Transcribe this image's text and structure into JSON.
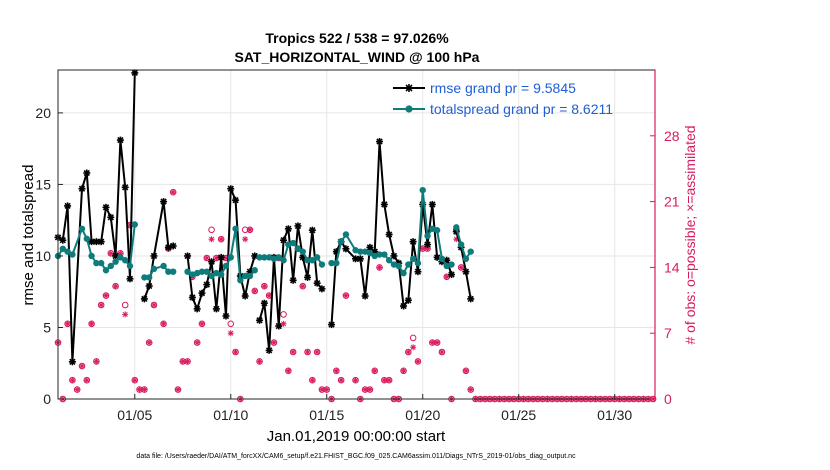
{
  "chart_data": {
    "type": "line",
    "title": "Tropics 522 / 538 = 97.026%",
    "subtitle": "SAT_HORIZONTAL_WIND @ 100 hPa",
    "xlabel": "Jan.01,2019 00:00:00 start",
    "ylabel": "rmse and totalspread",
    "y2label": "# of obs: o=possible; ×=assimilated",
    "xlim": [
      1,
      32.1
    ],
    "ylim": [
      0,
      23
    ],
    "y2lim": [
      0,
      35
    ],
    "x_ticks": [
      5,
      10,
      15,
      20,
      25,
      30
    ],
    "x_tick_labels": [
      "01/05",
      "01/10",
      "01/15",
      "01/20",
      "01/25",
      "01/30"
    ],
    "y_ticks": [
      0,
      5,
      10,
      15,
      20
    ],
    "y_tick_labels": [
      "0",
      "5",
      "10",
      "15",
      "20"
    ],
    "y2_ticks": [
      0,
      7,
      14,
      21,
      28
    ],
    "y2_tick_labels": [
      "0",
      "7",
      "14",
      "21",
      "28"
    ],
    "footer": "data file: /Users/raeder/DAI/ATM_forcXX/CAM6_setup/f.e21.FHIST_BGC.f09_025.CAM6assim.011/Diags_NTrS_2019-01/obs_diag_output.nc",
    "series": [
      {
        "name": "rmse grand pr = 9.5845",
        "color": "#000000",
        "segments": [
          [
            [
              1.0,
              11.3
            ],
            [
              1.25,
              11.1
            ],
            [
              1.5,
              13.5
            ],
            [
              1.75,
              2.6
            ],
            [
              2.25,
              14.7
            ],
            [
              2.5,
              15.8
            ],
            [
              2.75,
              11.0
            ],
            [
              3.0,
              11.0
            ],
            [
              3.25,
              11.0
            ],
            [
              3.5,
              13.4
            ],
            [
              3.75,
              12.7
            ],
            [
              4.0,
              10.0
            ],
            [
              4.25,
              18.1
            ],
            [
              4.5,
              14.8
            ],
            [
              4.75,
              8.4
            ],
            [
              5.0,
              22.8
            ]
          ],
          [
            [
              5.5,
              7.0
            ],
            [
              5.75,
              7.9
            ],
            [
              6.0,
              10.0
            ],
            [
              6.5,
              13.8
            ],
            [
              6.75,
              10.6
            ],
            [
              7.0,
              10.7
            ]
          ],
          [
            [
              7.75,
              10.0
            ],
            [
              8.0,
              7.1
            ],
            [
              8.25,
              6.3
            ],
            [
              8.5,
              7.4
            ],
            [
              8.75,
              8.0
            ],
            [
              9.0,
              9.6
            ],
            [
              9.25,
              6.3
            ],
            [
              9.5,
              9.9
            ],
            [
              9.75,
              5.8
            ],
            [
              10.0,
              14.7
            ],
            [
              10.25,
              13.9
            ],
            [
              10.5,
              8.6
            ],
            [
              10.75,
              7.2
            ],
            [
              11.0,
              8.9
            ],
            [
              11.25,
              10.0
            ]
          ],
          [
            [
              11.5,
              5.5
            ],
            [
              11.75,
              6.7
            ],
            [
              12.0,
              3.4
            ],
            [
              12.25,
              9.9
            ],
            [
              12.5,
              5.1
            ],
            [
              12.75,
              11.1
            ],
            [
              13.0,
              11.9
            ],
            [
              13.25,
              8.3
            ],
            [
              13.5,
              12.1
            ],
            [
              13.75,
              9.9
            ],
            [
              14.0,
              8.5
            ],
            [
              14.25,
              11.8
            ],
            [
              14.5,
              8.1
            ],
            [
              14.75,
              7.7
            ]
          ],
          [
            [
              15.25,
              5.2
            ],
            [
              15.5,
              10.3
            ],
            [
              15.75,
              11.0
            ],
            [
              16.0,
              10.5
            ],
            [
              16.5,
              9.8
            ],
            [
              16.75,
              9.8
            ],
            [
              17.0,
              7.2
            ],
            [
              17.25,
              10.6
            ],
            [
              17.5,
              10.3
            ],
            [
              17.75,
              18.0
            ],
            [
              18.0,
              13.6
            ],
            [
              18.25,
              11.5
            ],
            [
              18.5,
              10.0
            ],
            [
              18.75,
              9.5
            ],
            [
              19.0,
              6.5
            ],
            [
              19.25,
              6.9
            ],
            [
              19.5,
              11.0
            ],
            [
              19.75,
              8.9
            ],
            [
              20.0,
              13.6
            ],
            [
              20.25,
              10.8
            ],
            [
              20.5,
              13.6
            ],
            [
              20.75,
              9.9
            ],
            [
              21.0,
              9.6
            ],
            [
              21.25,
              9.7
            ],
            [
              21.5,
              8.7
            ]
          ],
          [
            [
              21.75,
              11.7
            ],
            [
              22.0,
              10.6
            ],
            [
              22.25,
              8.9
            ],
            [
              22.5,
              7.0
            ]
          ]
        ]
      },
      {
        "name": "totalspread grand pr = 8.6211",
        "color": "#0e7c7b",
        "segments": [
          [
            [
              1.0,
              10.0
            ],
            [
              1.25,
              10.5
            ],
            [
              1.5,
              10.3
            ],
            [
              1.75,
              10.1
            ],
            [
              2.25,
              11.9
            ],
            [
              2.5,
              11.2
            ],
            [
              2.75,
              10.0
            ],
            [
              3.0,
              9.5
            ],
            [
              3.25,
              9.5
            ],
            [
              3.5,
              9.0
            ],
            [
              3.75,
              9.3
            ],
            [
              4.0,
              9.6
            ],
            [
              4.25,
              9.9
            ],
            [
              4.5,
              9.7
            ],
            [
              4.75,
              9.3
            ],
            [
              5.0,
              12.2
            ]
          ],
          [
            [
              5.5,
              8.5
            ],
            [
              5.75,
              8.5
            ],
            [
              6.0,
              9.1
            ],
            [
              6.5,
              9.3
            ],
            [
              6.75,
              8.9
            ],
            [
              7.0,
              8.9
            ]
          ],
          [
            [
              7.75,
              8.9
            ],
            [
              8.0,
              8.7
            ],
            [
              8.25,
              8.8
            ],
            [
              8.5,
              8.9
            ],
            [
              8.75,
              8.9
            ],
            [
              9.0,
              8.6
            ],
            [
              9.25,
              8.8
            ],
            [
              9.5,
              8.7
            ],
            [
              9.75,
              9.3
            ],
            [
              10.0,
              9.9
            ],
            [
              10.25,
              11.9
            ],
            [
              10.5,
              8.3
            ],
            [
              10.75,
              8.6
            ],
            [
              11.0,
              8.6
            ],
            [
              11.25,
              9.0
            ]
          ],
          [
            [
              11.5,
              9.9
            ],
            [
              11.75,
              9.9
            ],
            [
              12.0,
              9.9
            ],
            [
              12.25,
              9.8
            ],
            [
              12.5,
              9.9
            ],
            [
              12.75,
              9.7
            ],
            [
              13.0,
              10.8
            ],
            [
              13.25,
              10.9
            ],
            [
              13.5,
              10.5
            ],
            [
              13.75,
              10.3
            ],
            [
              14.0,
              9.7
            ],
            [
              14.25,
              9.7
            ],
            [
              14.5,
              9.9
            ],
            [
              14.75,
              9.4
            ]
          ],
          [
            [
              15.25,
              9.5
            ],
            [
              15.5,
              9.5
            ],
            [
              15.75,
              11.0
            ],
            [
              16.0,
              11.5
            ],
            [
              16.5,
              10.4
            ],
            [
              16.75,
              10.3
            ],
            [
              17.0,
              10.3
            ],
            [
              17.25,
              10.2
            ],
            [
              17.5,
              10.0
            ],
            [
              17.75,
              10.1
            ],
            [
              18.0,
              10.1
            ],
            [
              18.25,
              9.7
            ],
            [
              18.5,
              9.4
            ],
            [
              18.75,
              9.3
            ],
            [
              19.0,
              8.8
            ],
            [
              19.25,
              9.4
            ],
            [
              19.5,
              9.8
            ],
            [
              19.75,
              9.5
            ],
            [
              20.0,
              14.6
            ],
            [
              20.25,
              11.4
            ],
            [
              20.5,
              11.9
            ],
            [
              20.75,
              11.8
            ],
            [
              21.0,
              9.8
            ],
            [
              21.25,
              9.3
            ],
            [
              21.5,
              9.4
            ]
          ],
          [
            [
              21.75,
              12.0
            ],
            [
              22.0,
              10.8
            ],
            [
              22.25,
              9.8
            ],
            [
              22.5,
              10.3
            ]
          ]
        ]
      }
    ],
    "obs_possible": [
      [
        1.0,
        6.0
      ],
      [
        1.25,
        0.0
      ],
      [
        1.5,
        8.0
      ],
      [
        1.75,
        2.0
      ],
      [
        2.0,
        1.0
      ],
      [
        2.25,
        3.5
      ],
      [
        2.5,
        2.0
      ],
      [
        2.75,
        8.0
      ],
      [
        3.0,
        4.0
      ],
      [
        3.25,
        10.0
      ],
      [
        3.5,
        11.0
      ],
      [
        3.75,
        15.5
      ],
      [
        4.0,
        12.0
      ],
      [
        4.25,
        15.5
      ],
      [
        4.5,
        10.0
      ],
      [
        4.75,
        18.5
      ],
      [
        5.0,
        2.0
      ],
      [
        5.25,
        1.0
      ],
      [
        5.5,
        1.0
      ],
      [
        5.75,
        6.0
      ],
      [
        6.0,
        10.0
      ],
      [
        6.5,
        8.0
      ],
      [
        6.75,
        16.0
      ],
      [
        7.0,
        22.0
      ],
      [
        7.25,
        1.0
      ],
      [
        7.5,
        4.0
      ],
      [
        7.75,
        4.0
      ],
      [
        8.0,
        13.0
      ],
      [
        8.25,
        6.0
      ],
      [
        8.5,
        8.0
      ],
      [
        8.75,
        15.0
      ],
      [
        9.0,
        18.0
      ],
      [
        9.25,
        15.0
      ],
      [
        9.5,
        17.0
      ],
      [
        9.75,
        15.0
      ],
      [
        10.0,
        8.0
      ],
      [
        10.25,
        5.0
      ],
      [
        10.5,
        0.0
      ],
      [
        10.75,
        18.0
      ],
      [
        11.0,
        18.0
      ],
      [
        11.25,
        11.5
      ],
      [
        11.5,
        4.0
      ],
      [
        11.75,
        12.0
      ],
      [
        12.0,
        11.0
      ],
      [
        12.25,
        6.0
      ],
      [
        12.5,
        15.0
      ],
      [
        12.75,
        9.0
      ],
      [
        13.0,
        3.0
      ],
      [
        13.25,
        5.0
      ],
      [
        13.5,
        16.0
      ],
      [
        13.75,
        12.0
      ],
      [
        14.0,
        5.0
      ],
      [
        14.25,
        2.0
      ],
      [
        14.5,
        5.0
      ],
      [
        14.75,
        1.0
      ],
      [
        15.0,
        1.0
      ],
      [
        15.25,
        0.0
      ],
      [
        15.5,
        3.0
      ],
      [
        15.75,
        2.0
      ],
      [
        16.0,
        11.0
      ],
      [
        16.5,
        2.0
      ],
      [
        16.75,
        0.0
      ],
      [
        17.0,
        1.0
      ],
      [
        17.25,
        1.0
      ],
      [
        17.5,
        3.0
      ],
      [
        17.75,
        14.0
      ],
      [
        18.0,
        2.0
      ],
      [
        18.25,
        2.0
      ],
      [
        18.5,
        0.0
      ],
      [
        18.75,
        0.0
      ],
      [
        19.0,
        3.0
      ],
      [
        19.25,
        5.0
      ],
      [
        19.5,
        6.5
      ],
      [
        19.75,
        4.0
      ],
      [
        20.0,
        16.0
      ],
      [
        20.25,
        16.0
      ],
      [
        20.5,
        6.0
      ],
      [
        20.75,
        6.0
      ],
      [
        21.0,
        5.0
      ],
      [
        21.25,
        13.0
      ],
      [
        21.5,
        0.0
      ],
      [
        21.75,
        18.0
      ],
      [
        22.0,
        14.0
      ],
      [
        22.25,
        3.0
      ],
      [
        22.5,
        1.0
      ]
    ],
    "obs_assimilated": [
      [
        1.0,
        6.0
      ],
      [
        1.25,
        0.0
      ],
      [
        1.5,
        8.0
      ],
      [
        1.75,
        2.0
      ],
      [
        2.0,
        1.0
      ],
      [
        2.25,
        3.5
      ],
      [
        2.5,
        2.0
      ],
      [
        2.75,
        8.0
      ],
      [
        3.0,
        4.0
      ],
      [
        3.25,
        10.0
      ],
      [
        3.5,
        11.0
      ],
      [
        3.75,
        15.5
      ],
      [
        4.0,
        12.0
      ],
      [
        4.25,
        15.5
      ],
      [
        4.5,
        9.0
      ],
      [
        4.75,
        18.5
      ],
      [
        5.0,
        2.0
      ],
      [
        5.25,
        1.0
      ],
      [
        5.5,
        1.0
      ],
      [
        5.75,
        6.0
      ],
      [
        6.0,
        10.0
      ],
      [
        6.5,
        8.0
      ],
      [
        6.75,
        16.0
      ],
      [
        7.0,
        22.0
      ],
      [
        7.25,
        1.0
      ],
      [
        7.5,
        4.0
      ],
      [
        7.75,
        4.0
      ],
      [
        8.0,
        13.0
      ],
      [
        8.25,
        6.0
      ],
      [
        8.5,
        8.0
      ],
      [
        8.75,
        15.0
      ],
      [
        9.0,
        17.0
      ],
      [
        9.25,
        15.0
      ],
      [
        9.5,
        17.0
      ],
      [
        9.75,
        15.0
      ],
      [
        10.0,
        7.0
      ],
      [
        10.25,
        5.0
      ],
      [
        10.5,
        0.0
      ],
      [
        10.75,
        17.0
      ],
      [
        11.0,
        18.0
      ],
      [
        11.25,
        11.5
      ],
      [
        11.5,
        4.0
      ],
      [
        11.75,
        12.0
      ],
      [
        12.0,
        11.0
      ],
      [
        12.25,
        6.0
      ],
      [
        12.5,
        15.0
      ],
      [
        12.75,
        8.0
      ],
      [
        13.0,
        3.0
      ],
      [
        13.25,
        5.0
      ],
      [
        13.5,
        16.0
      ],
      [
        13.75,
        12.0
      ],
      [
        14.0,
        5.0
      ],
      [
        14.25,
        2.0
      ],
      [
        14.5,
        5.0
      ],
      [
        14.75,
        1.0
      ],
      [
        15.0,
        1.0
      ],
      [
        15.25,
        0.0
      ],
      [
        15.5,
        3.0
      ],
      [
        15.75,
        2.0
      ],
      [
        16.0,
        11.0
      ],
      [
        16.5,
        2.0
      ],
      [
        16.75,
        0.0
      ],
      [
        17.0,
        1.0
      ],
      [
        17.25,
        1.0
      ],
      [
        17.5,
        3.0
      ],
      [
        17.75,
        14.0
      ],
      [
        18.0,
        2.0
      ],
      [
        18.25,
        2.0
      ],
      [
        18.5,
        0.0
      ],
      [
        18.75,
        0.0
      ],
      [
        19.0,
        3.0
      ],
      [
        19.25,
        5.0
      ],
      [
        19.5,
        5.5
      ],
      [
        19.75,
        4.0
      ],
      [
        20.0,
        16.0
      ],
      [
        20.25,
        16.0
      ],
      [
        20.5,
        6.0
      ],
      [
        20.75,
        6.0
      ],
      [
        21.0,
        5.0
      ],
      [
        21.25,
        13.0
      ],
      [
        21.5,
        0.0
      ],
      [
        21.75,
        17.0
      ],
      [
        22.0,
        14.0
      ],
      [
        22.25,
        3.0
      ],
      [
        22.5,
        1.0
      ]
    ],
    "obs_zero_from": 22.75,
    "obs_zero_step": 0.25,
    "obs_zero_to": 32.0
  }
}
